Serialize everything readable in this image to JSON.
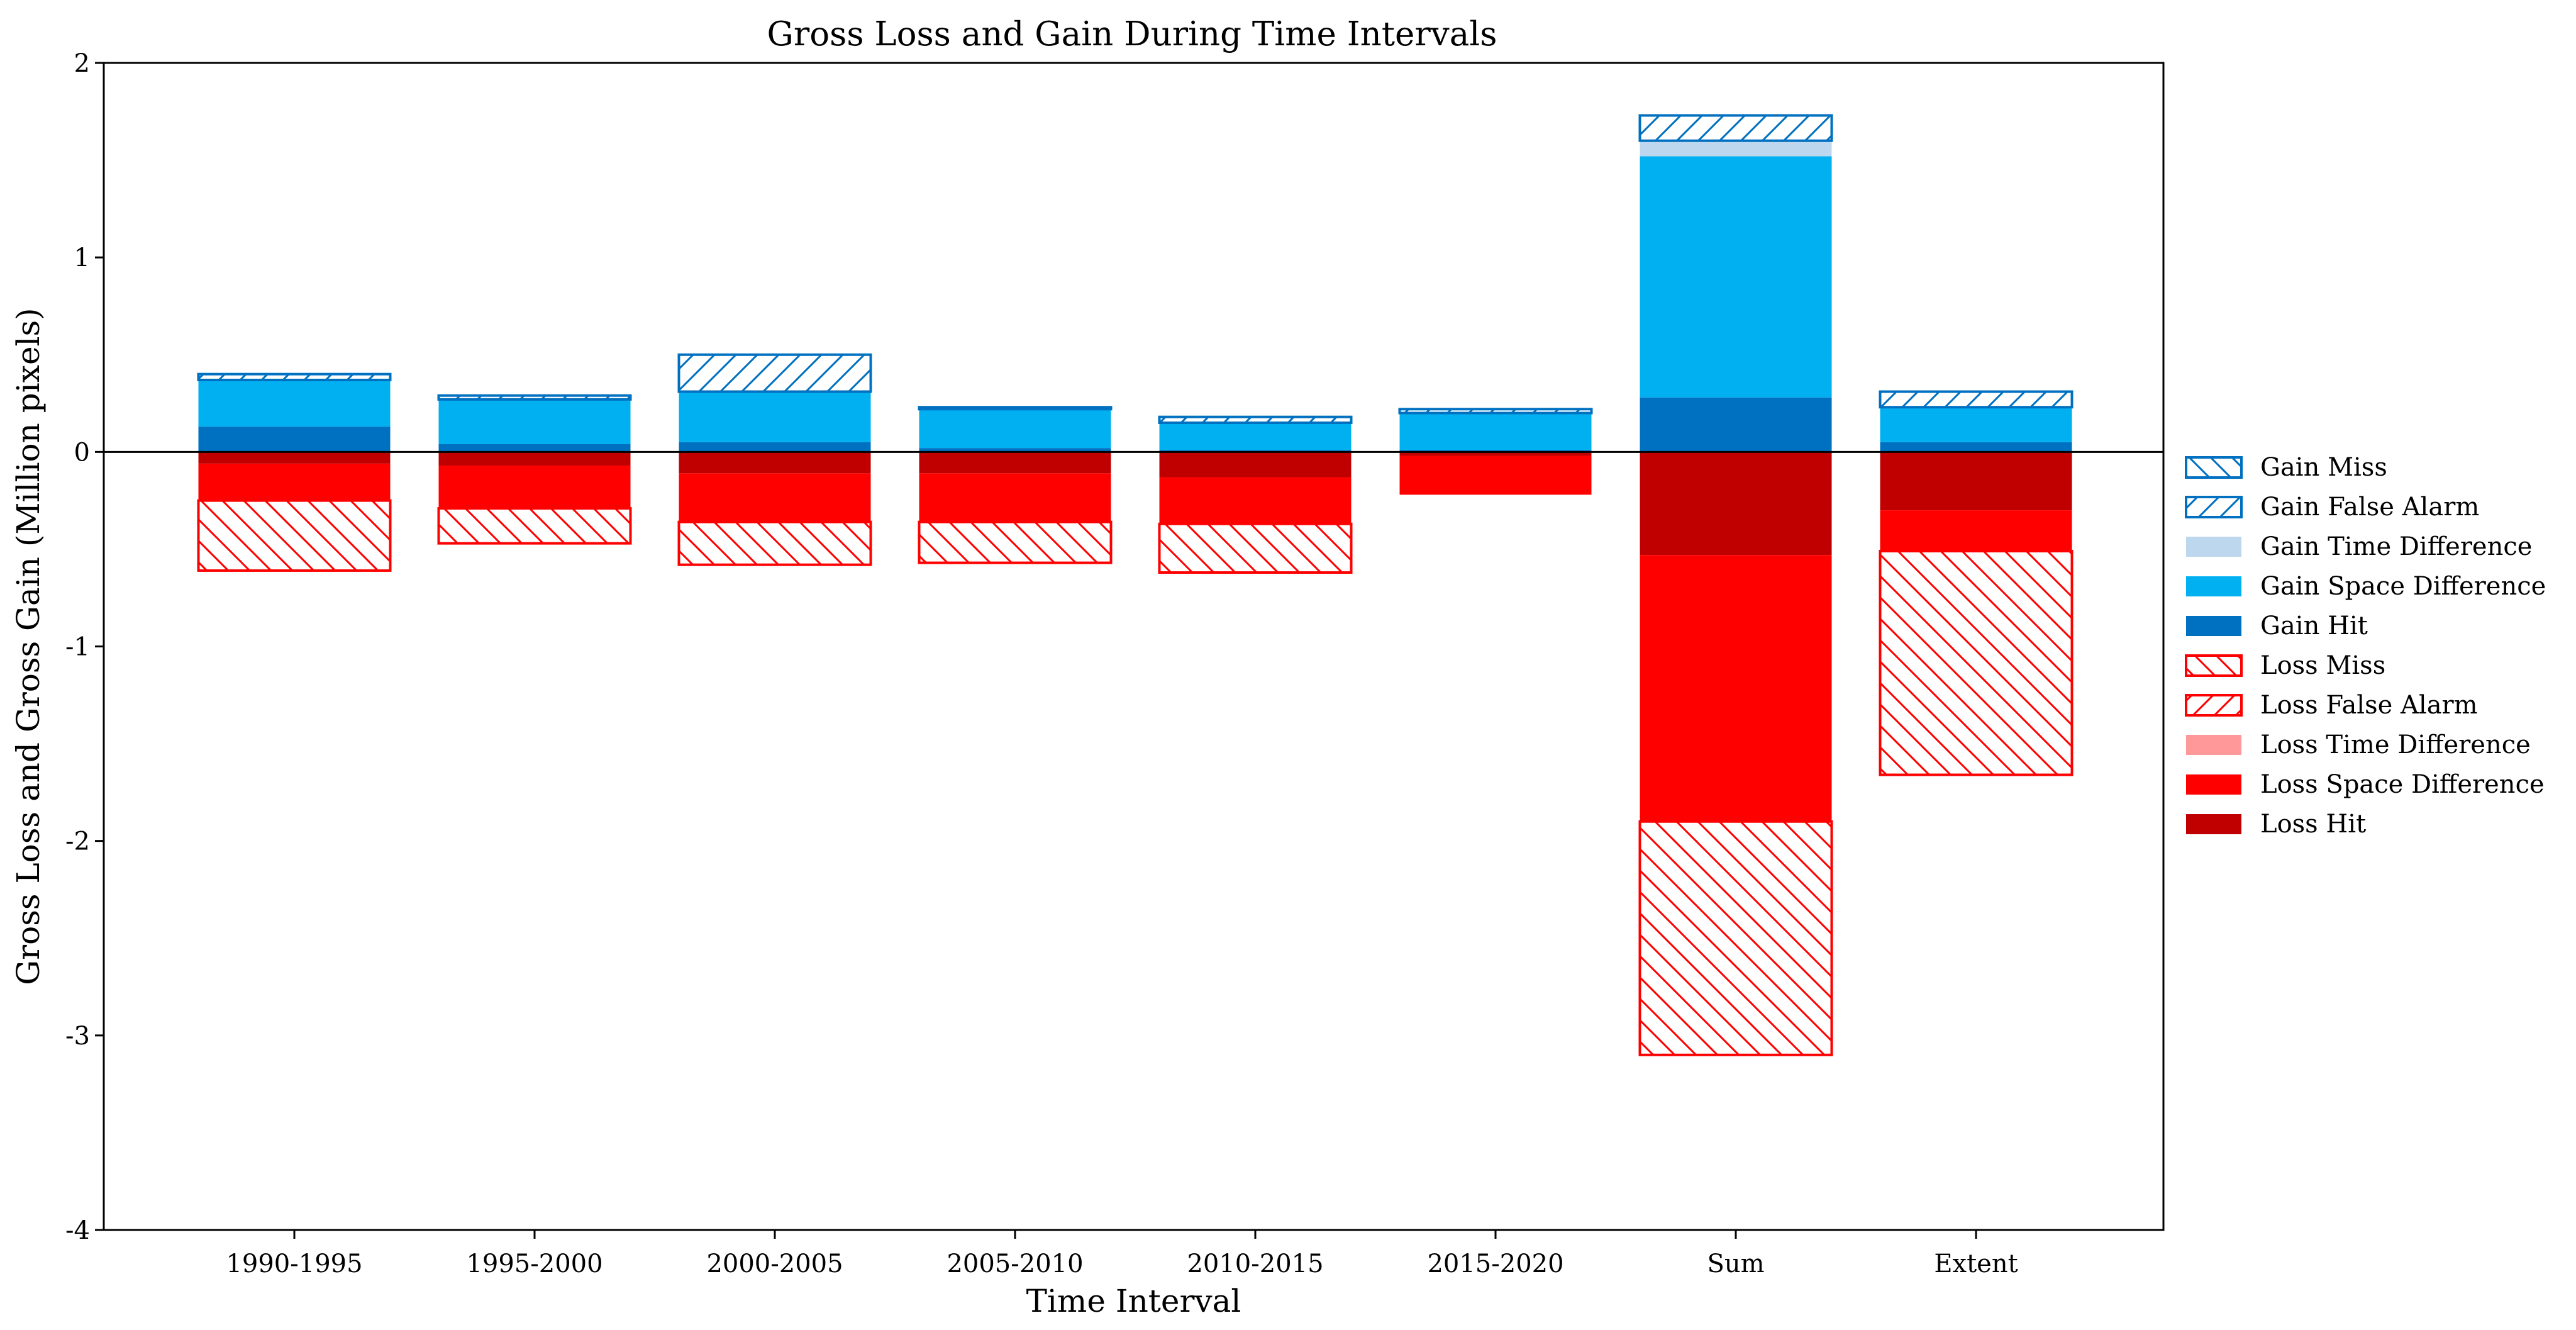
{
  "chart_data": {
    "type": "bar",
    "title": "Gross Loss and Gain During Time Intervals",
    "xlabel": "Time Interval",
    "ylabel": "Gross Loss and Gross Gain (Million pixels)",
    "ylim": [
      -4,
      2
    ],
    "yticks": [
      -4,
      -3,
      -2,
      -1,
      0,
      1,
      2
    ],
    "grid": false,
    "legend_position": "right",
    "categories": [
      "1990-1995",
      "1995-2000",
      "2000-2005",
      "2005-2010",
      "2010-2015",
      "2015-2020",
      "Sum",
      "Extent"
    ],
    "series": [
      {
        "name": "Gain Hit",
        "side": "gain",
        "color": "#0070c0",
        "hatch": "none",
        "values": [
          0.13,
          0.04,
          0.05,
          0.02,
          0.01,
          0.01,
          0.28,
          0.05
        ]
      },
      {
        "name": "Gain Space Difference",
        "side": "gain",
        "color": "#00b0f0",
        "hatch": "none",
        "values": [
          0.24,
          0.23,
          0.26,
          0.2,
          0.14,
          0.19,
          1.24,
          0.18
        ]
      },
      {
        "name": "Gain Time Difference",
        "side": "gain",
        "color": "#bdd7ee",
        "hatch": "none",
        "values": [
          0,
          0,
          0,
          0,
          0,
          0,
          0.08,
          0
        ]
      },
      {
        "name": "Gain False Alarm",
        "side": "gain",
        "color": "#0070c0",
        "hatch": "forward",
        "values": [
          0.03,
          0.02,
          0.19,
          0.01,
          0.03,
          0.02,
          0.13,
          0.08
        ]
      },
      {
        "name": "Gain Miss",
        "side": "gain",
        "color": "#0070c0",
        "hatch": "back",
        "values": [
          0,
          0,
          0,
          0,
          0,
          0,
          0,
          0
        ]
      },
      {
        "name": "Loss Hit",
        "side": "loss",
        "color": "#c00000",
        "hatch": "none",
        "values": [
          0.06,
          0.07,
          0.11,
          0.11,
          0.13,
          0.02,
          0.53,
          0.3
        ]
      },
      {
        "name": "Loss Space Difference",
        "side": "loss",
        "color": "#ff0000",
        "hatch": "none",
        "values": [
          0.19,
          0.22,
          0.25,
          0.25,
          0.24,
          0.2,
          1.37,
          0.21
        ]
      },
      {
        "name": "Loss Time Difference",
        "side": "loss",
        "color": "#ff9999",
        "hatch": "none",
        "values": [
          0,
          0,
          0,
          0,
          0,
          0,
          0,
          0
        ]
      },
      {
        "name": "Loss False Alarm",
        "side": "loss",
        "color": "#ff0000",
        "hatch": "forward",
        "values": [
          0,
          0,
          0,
          0,
          0,
          0,
          0,
          0
        ]
      },
      {
        "name": "Loss Miss",
        "side": "loss",
        "color": "#ff0000",
        "hatch": "back",
        "values": [
          0.36,
          0.18,
          0.22,
          0.21,
          0.25,
          0,
          1.2,
          1.15
        ]
      }
    ],
    "legend_order": [
      "Gain Miss",
      "Gain False Alarm",
      "Gain Time Difference",
      "Gain Space Difference",
      "Gain Hit",
      "Loss Miss",
      "Loss False Alarm",
      "Loss Time Difference",
      "Loss Space Difference",
      "Loss Hit"
    ]
  }
}
